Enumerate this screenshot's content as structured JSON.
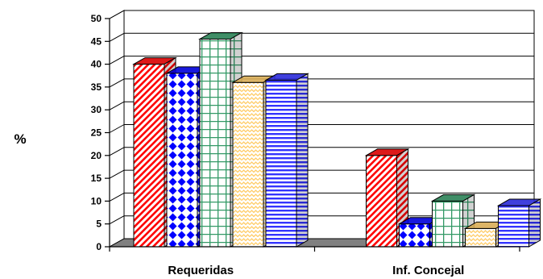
{
  "chart_data": {
    "type": "bar",
    "title": "",
    "xlabel": "",
    "ylabel": "%",
    "ylim": [
      0,
      50
    ],
    "yticks": [
      0,
      5,
      10,
      15,
      20,
      25,
      30,
      35,
      40,
      45,
      50
    ],
    "categories": [
      "Requeridas",
      "Inf. Concejal"
    ],
    "grid": true,
    "legend": "none",
    "style": "3d",
    "series": [
      {
        "values": [
          40,
          20
        ],
        "color": "#ff0000",
        "pattern": "diagonal-stripes"
      },
      {
        "values": [
          38,
          5
        ],
        "color": "#0000ff",
        "pattern": "diamonds"
      },
      {
        "values": [
          45.5,
          10
        ],
        "color": "#339966",
        "pattern": "grid"
      },
      {
        "values": [
          36,
          4
        ],
        "color": "#ffcc66",
        "pattern": "wave"
      },
      {
        "values": [
          36.5,
          9
        ],
        "color": "#3333ff",
        "pattern": "horizontal-stripes"
      }
    ]
  }
}
